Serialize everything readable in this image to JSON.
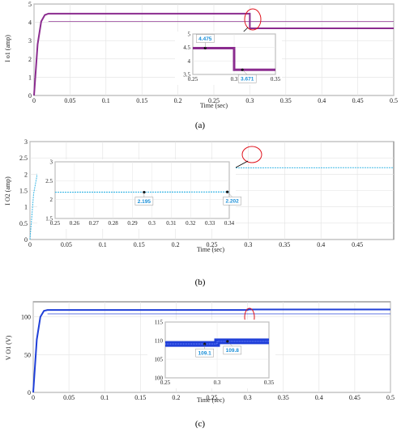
{
  "chart_data": [
    {
      "type": "line",
      "caption": "(a)",
      "xlabel": "Time (sec)",
      "ylabel": "I o1 (amp)",
      "xlim": [
        0,
        0.5
      ],
      "ylim": [
        0,
        5
      ],
      "xticks": [
        "0",
        "0.05",
        "0.1",
        "0.15",
        "0.2",
        "0.25",
        "0.3",
        "0.35",
        "0.4",
        "0.45",
        "0.5"
      ],
      "yticks": [
        "0",
        "1",
        "2",
        "3",
        "4",
        "5"
      ],
      "grid": true,
      "color": "#8b2c8f",
      "series": [
        {
          "x": [
            0,
            0.005,
            0.01,
            0.015,
            0.02,
            0.3,
            0.3,
            0.5
          ],
          "y": [
            0,
            2.8,
            4.05,
            4.4,
            4.475,
            4.475,
            3.671,
            3.671
          ]
        }
      ],
      "reference": {
        "x": [
          0.02,
          0.5
        ],
        "y": [
          4.05,
          4.05
        ]
      },
      "inset": {
        "xlim": [
          0.25,
          0.35
        ],
        "ylim": [
          3.5,
          5
        ],
        "xticks": [
          "0.25",
          "0.3",
          "0.35"
        ],
        "yticks": [
          "3.5",
          "4",
          "4.5",
          "5"
        ],
        "series": [
          {
            "x": [
              0.25,
              0.3,
              0.3,
              0.35
            ],
            "y": [
              4.475,
              4.475,
              3.671,
              3.671
            ]
          }
        ],
        "datatips": [
          {
            "x": 0.265,
            "y": 4.475,
            "label": "4.475"
          },
          {
            "x": 0.31,
            "y": 3.671,
            "label": "3.671"
          }
        ]
      }
    },
    {
      "type": "line",
      "caption": "(b)",
      "xlabel": "Time (sec)",
      "ylabel": "I O2 (amp)",
      "xlim": [
        0,
        0.5
      ],
      "ylim": [
        0,
        3
      ],
      "xticks": [
        "0",
        "0.05",
        "0.1",
        "0.15",
        "0.2",
        "0.25",
        "0.3",
        "0.35",
        "0.4",
        "0.45"
      ],
      "yticks": [
        "0",
        "0.5",
        "1",
        "1.5",
        "2",
        "2.5",
        "3"
      ],
      "grid": true,
      "color": "#3cb8e6",
      "series": [
        {
          "x": [
            0,
            0.005,
            0.01,
            0.015,
            0.02,
            0.3,
            0.5
          ],
          "y": [
            0,
            1.4,
            2.0,
            2.17,
            2.195,
            2.195,
            2.202
          ]
        }
      ],
      "inset": {
        "xlim": [
          0.25,
          0.34
        ],
        "ylim": [
          1.5,
          3
        ],
        "xticks": [
          "0.25",
          "0.26",
          "0.27",
          "0.28",
          "0.29",
          "0.3",
          "0.31",
          "0.32",
          "0.33",
          "0.34"
        ],
        "yticks": [
          "1.5",
          "2",
          "2.5",
          "3"
        ],
        "series": [
          {
            "x": [
              0.25,
              0.3,
              0.34
            ],
            "y": [
              2.195,
              2.198,
              2.202
            ]
          }
        ],
        "datatips": [
          {
            "x": 0.296,
            "y": 2.195,
            "label": "2.195"
          },
          {
            "x": 0.339,
            "y": 2.202,
            "label": "2.202"
          }
        ]
      }
    },
    {
      "type": "line",
      "caption": "(c)",
      "xlabel": "Time (sec)",
      "ylabel": "V O1 (V)",
      "xlim": [
        0,
        0.5
      ],
      "ylim": [
        0,
        120
      ],
      "xticks": [
        "0",
        "0.05",
        "0.1",
        "0.15",
        "0.2",
        "0.25",
        "0.3",
        "0.35",
        "0.4",
        "0.45",
        "0.5"
      ],
      "yticks": [
        "0",
        "50",
        "100"
      ],
      "grid": true,
      "color": "#1f3fd8",
      "series": [
        {
          "x": [
            0,
            0.005,
            0.01,
            0.015,
            0.02,
            0.3,
            0.3,
            0.5
          ],
          "y": [
            0,
            70,
            100,
            108,
            109.1,
            109.1,
            109.8,
            109.8
          ]
        }
      ],
      "reference": {
        "x": [
          0.02,
          0.5
        ],
        "y": [
          104,
          104
        ]
      },
      "inset": {
        "xlim": [
          0.25,
          0.35
        ],
        "ylim": [
          100,
          115
        ],
        "xticks": [
          "0.25",
          "0.3",
          "0.35"
        ],
        "yticks": [
          "100",
          "105",
          "110",
          "115"
        ],
        "series": [
          {
            "x": [
              0.25,
              0.3,
              0.3,
              0.35
            ],
            "y": [
              109.1,
              109.1,
              109.8,
              109.8
            ]
          }
        ],
        "datatips": [
          {
            "x": 0.288,
            "y": 109.1,
            "label": "109.1"
          },
          {
            "x": 0.31,
            "y": 109.8,
            "label": "109.8"
          }
        ]
      }
    }
  ]
}
